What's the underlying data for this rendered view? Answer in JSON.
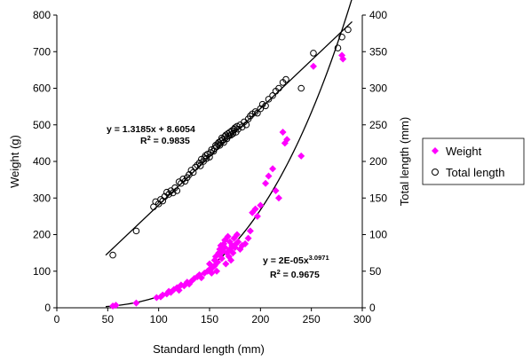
{
  "chart_data": {
    "type": "scatter",
    "xlabel": "Standard length (mm)",
    "ylabel_left": "Weight (g)",
    "ylabel_right": "Total length (mm)",
    "xlim": [
      0,
      300
    ],
    "ylim_left": [
      0,
      800
    ],
    "ylim_right": [
      0,
      400
    ],
    "xticks": [
      "0",
      "50",
      "100",
      "150",
      "200",
      "250",
      "300"
    ],
    "yticks_left": [
      "0",
      "100",
      "200",
      "300",
      "400",
      "500",
      "600",
      "700",
      "800"
    ],
    "yticks_right": [
      "0",
      "50",
      "100",
      "150",
      "200",
      "250",
      "300",
      "350",
      "400"
    ],
    "grid": false,
    "legend_position": "right",
    "legend": [
      "Weight",
      "Total length"
    ],
    "colors": {
      "weight": "#ff00ff",
      "total_length": "#000000",
      "trend": "#000000"
    },
    "annotations": {
      "total_length_eq": "y = 1.3185x + 8.6054",
      "total_length_r2_base": "R",
      "total_length_r2_sup": "2",
      "total_length_r2_val": " = 0.9835",
      "weight_eq_base": "y = 2E-05x",
      "weight_eq_sup": "3.0971",
      "weight_r2_base": "R",
      "weight_r2_sup": "2",
      "weight_r2_val": " = 0.9675"
    },
    "trendlines": {
      "total_length": {
        "axis": "right",
        "slope": 1.3185,
        "intercept": 8.6054,
        "x_range": [
          48,
          290
        ]
      },
      "weight": {
        "axis": "left",
        "a": 2e-05,
        "b": 3.0971,
        "x_range": [
          48,
          290
        ]
      }
    },
    "series": [
      {
        "name": "Weight",
        "axis": "left",
        "marker": "diamond",
        "points": [
          [
            55,
            5
          ],
          [
            58,
            7
          ],
          [
            78,
            13
          ],
          [
            98,
            28
          ],
          [
            102,
            30
          ],
          [
            104,
            35
          ],
          [
            108,
            38
          ],
          [
            110,
            45
          ],
          [
            112,
            42
          ],
          [
            115,
            50
          ],
          [
            118,
            55
          ],
          [
            120,
            48
          ],
          [
            122,
            62
          ],
          [
            125,
            60
          ],
          [
            128,
            70
          ],
          [
            130,
            65
          ],
          [
            132,
            72
          ],
          [
            135,
            80
          ],
          [
            138,
            85
          ],
          [
            140,
            90
          ],
          [
            142,
            82
          ],
          [
            145,
            95
          ],
          [
            148,
            100
          ],
          [
            150,
            105
          ],
          [
            150,
            120
          ],
          [
            152,
            95
          ],
          [
            153,
            110
          ],
          [
            155,
            115
          ],
          [
            155,
            130
          ],
          [
            156,
            140
          ],
          [
            157,
            100
          ],
          [
            158,
            125
          ],
          [
            159,
            150
          ],
          [
            160,
            145
          ],
          [
            160,
            160
          ],
          [
            161,
            170
          ],
          [
            162,
            135
          ],
          [
            163,
            155
          ],
          [
            164,
            175
          ],
          [
            165,
            165
          ],
          [
            165,
            185
          ],
          [
            166,
            120
          ],
          [
            167,
            150
          ],
          [
            168,
            195
          ],
          [
            169,
            140
          ],
          [
            170,
            160
          ],
          [
            170,
            180
          ],
          [
            171,
            130
          ],
          [
            172,
            170
          ],
          [
            173,
            150
          ],
          [
            174,
            190
          ],
          [
            175,
            165
          ],
          [
            176,
            175
          ],
          [
            177,
            200
          ],
          [
            178,
            180
          ],
          [
            180,
            160
          ],
          [
            182,
            170
          ],
          [
            185,
            175
          ],
          [
            188,
            190
          ],
          [
            190,
            210
          ],
          [
            192,
            260
          ],
          [
            195,
            270
          ],
          [
            197,
            250
          ],
          [
            200,
            280
          ],
          [
            205,
            340
          ],
          [
            208,
            360
          ],
          [
            212,
            380
          ],
          [
            215,
            320
          ],
          [
            218,
            300
          ],
          [
            222,
            480
          ],
          [
            224,
            450
          ],
          [
            226,
            460
          ],
          [
            240,
            415
          ],
          [
            252,
            660
          ],
          [
            280,
            690
          ],
          [
            281,
            680
          ]
        ]
      },
      {
        "name": "Total length",
        "axis": "right",
        "marker": "circle",
        "points": [
          [
            55,
            72
          ],
          [
            78,
            105
          ],
          [
            95,
            138
          ],
          [
            97,
            145
          ],
          [
            100,
            142
          ],
          [
            102,
            148
          ],
          [
            104,
            146
          ],
          [
            106,
            152
          ],
          [
            108,
            158
          ],
          [
            110,
            155
          ],
          [
            112,
            160
          ],
          [
            114,
            157
          ],
          [
            116,
            164
          ],
          [
            118,
            160
          ],
          [
            120,
            172
          ],
          [
            122,
            170
          ],
          [
            124,
            176
          ],
          [
            126,
            173
          ],
          [
            128,
            178
          ],
          [
            130,
            182
          ],
          [
            132,
            188
          ],
          [
            134,
            185
          ],
          [
            136,
            192
          ],
          [
            138,
            195
          ],
          [
            140,
            198
          ],
          [
            141,
            194
          ],
          [
            142,
            203
          ],
          [
            144,
            200
          ],
          [
            145,
            205
          ],
          [
            146,
            208
          ],
          [
            147,
            204
          ],
          [
            148,
            210
          ],
          [
            150,
            206
          ],
          [
            151,
            212
          ],
          [
            152,
            216
          ],
          [
            154,
            214
          ],
          [
            155,
            218
          ],
          [
            156,
            222
          ],
          [
            157,
            220
          ],
          [
            158,
            224
          ],
          [
            159,
            226
          ],
          [
            160,
            222
          ],
          [
            161,
            228
          ],
          [
            162,
            232
          ],
          [
            163,
            230
          ],
          [
            164,
            226
          ],
          [
            165,
            234
          ],
          [
            166,
            236
          ],
          [
            167,
            231
          ],
          [
            168,
            238
          ],
          [
            169,
            235
          ],
          [
            170,
            240
          ],
          [
            171,
            236
          ],
          [
            172,
            242
          ],
          [
            173,
            238
          ],
          [
            174,
            244
          ],
          [
            175,
            246
          ],
          [
            176,
            240
          ],
          [
            177,
            248
          ],
          [
            178,
            244
          ],
          [
            180,
            250
          ],
          [
            182,
            247
          ],
          [
            184,
            254
          ],
          [
            186,
            250
          ],
          [
            188,
            258
          ],
          [
            190,
            262
          ],
          [
            192,
            265
          ],
          [
            195,
            268
          ],
          [
            197,
            266
          ],
          [
            200,
            272
          ],
          [
            202,
            278
          ],
          [
            205,
            276
          ],
          [
            208,
            285
          ],
          [
            212,
            290
          ],
          [
            215,
            296
          ],
          [
            218,
            300
          ],
          [
            222,
            308
          ],
          [
            225,
            312
          ],
          [
            240,
            300
          ],
          [
            252,
            348
          ],
          [
            276,
            355
          ],
          [
            280,
            370
          ],
          [
            286,
            380
          ]
        ]
      }
    ]
  }
}
